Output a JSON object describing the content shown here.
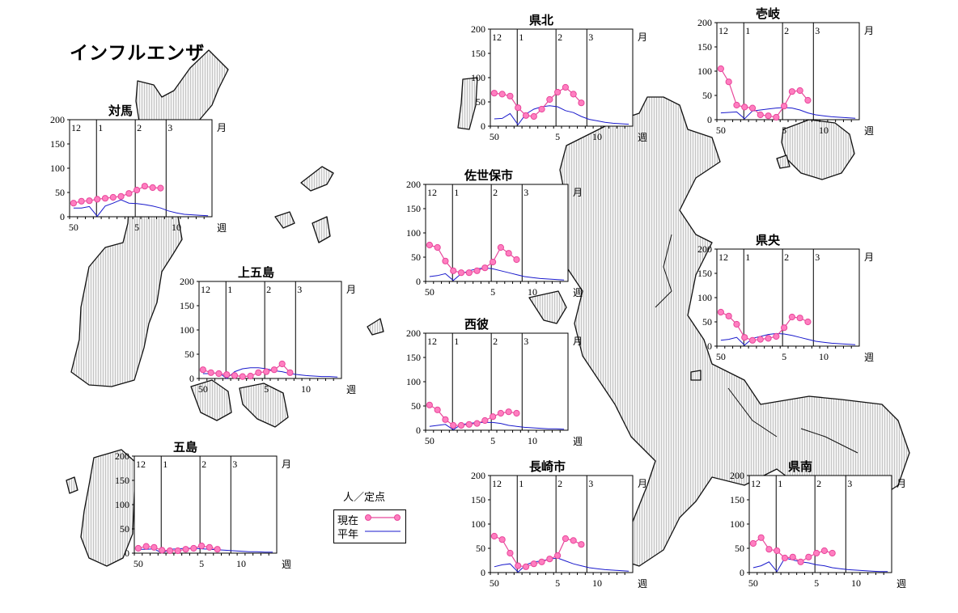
{
  "title": "インフルエンザ",
  "legend": {
    "unit": "人／定点",
    "current": "現在",
    "average": "平年"
  },
  "colors": {
    "current": "#e8479b",
    "current_fill": "#ff7ec0",
    "average": "#1a1acc",
    "land_fill": "#ececec",
    "land_stripe": "#c8c8c8"
  },
  "chart_data": [
    {
      "type": "line",
      "region": "対馬",
      "y_ticks": [
        "200",
        "150",
        "100",
        "50",
        "0"
      ],
      "ylim": [
        0,
        200
      ],
      "x_ticks": [
        "50",
        "5",
        "10"
      ],
      "x_unit": "週",
      "months": [
        "12",
        "1",
        "2",
        "3"
      ],
      "month_unit": "月",
      "series": [
        {
          "name": "現在",
          "values": [
            28,
            32,
            33,
            36,
            38,
            40,
            42,
            48,
            55,
            63,
            60,
            59
          ]
        },
        {
          "name": "平年",
          "values": [
            18,
            18,
            21,
            1,
            22,
            28,
            35,
            28,
            27,
            25,
            22,
            18,
            12,
            8,
            5,
            4,
            3,
            2
          ]
        }
      ]
    },
    {
      "type": "line",
      "region": "上五島",
      "y_ticks": [
        "200",
        "150",
        "100",
        "50",
        "0"
      ],
      "ylim": [
        0,
        200
      ],
      "x_ticks": [
        "50",
        "5",
        "10"
      ],
      "x_unit": "週",
      "months": [
        "12",
        "1",
        "2",
        "3"
      ],
      "month_unit": "月",
      "series": [
        {
          "name": "現在",
          "values": [
            18,
            12,
            10,
            8,
            6,
            4,
            5,
            12,
            14,
            18,
            30,
            12
          ]
        },
        {
          "name": "平年",
          "values": [
            10,
            10,
            12,
            0,
            14,
            20,
            22,
            22,
            20,
            16,
            14,
            10,
            8,
            6,
            5,
            4,
            4,
            3
          ]
        }
      ]
    },
    {
      "type": "line",
      "region": "五島",
      "y_ticks": [
        "200",
        "150",
        "100",
        "50",
        "0"
      ],
      "ylim": [
        0,
        200
      ],
      "x_ticks": [
        "50",
        "5",
        "10"
      ],
      "x_unit": "週",
      "months": [
        "12",
        "1",
        "2",
        "3"
      ],
      "month_unit": "月",
      "series": [
        {
          "name": "現在",
          "values": [
            10,
            14,
            12,
            6,
            5,
            5,
            8,
            10,
            15,
            12,
            8
          ]
        },
        {
          "name": "平年",
          "values": [
            8,
            8,
            9,
            0,
            8,
            9,
            10,
            10,
            9,
            8,
            7,
            6,
            5,
            4,
            3,
            3,
            2,
            2
          ]
        }
      ]
    },
    {
      "type": "line",
      "region": "県北",
      "y_ticks": [
        "200",
        "150",
        "100",
        "50",
        "0"
      ],
      "ylim": [
        0,
        200
      ],
      "x_ticks": [
        "50",
        "5",
        "10"
      ],
      "x_unit": "週",
      "months": [
        "12",
        "1",
        "2",
        "3"
      ],
      "month_unit": "月",
      "series": [
        {
          "name": "現在",
          "values": [
            68,
            66,
            62,
            38,
            22,
            20,
            35,
            55,
            70,
            80,
            66,
            48
          ]
        },
        {
          "name": "平年",
          "values": [
            15,
            16,
            26,
            3,
            25,
            35,
            40,
            42,
            40,
            32,
            28,
            20,
            14,
            11,
            8,
            6,
            5,
            4
          ]
        }
      ]
    },
    {
      "type": "line",
      "region": "壱岐",
      "y_ticks": [
        "200",
        "150",
        "100",
        "50",
        "0"
      ],
      "ylim": [
        0,
        200
      ],
      "x_ticks": [
        "50",
        "5",
        "10"
      ],
      "x_unit": "週",
      "months": [
        "12",
        "1",
        "2",
        "3"
      ],
      "month_unit": "月",
      "series": [
        {
          "name": "現在",
          "values": [
            105,
            78,
            30,
            26,
            24,
            10,
            8,
            5,
            28,
            58,
            60,
            40
          ]
        },
        {
          "name": "平年",
          "values": [
            14,
            15,
            16,
            2,
            18,
            20,
            22,
            24,
            25,
            24,
            20,
            14,
            10,
            8,
            6,
            5,
            4,
            3
          ]
        }
      ]
    },
    {
      "type": "line",
      "region": "佐世保市",
      "y_ticks": [
        "200",
        "150",
        "100",
        "50",
        "0"
      ],
      "ylim": [
        0,
        200
      ],
      "x_ticks": [
        "50",
        "5",
        "10"
      ],
      "x_unit": "週",
      "months": [
        "12",
        "1",
        "2",
        "3"
      ],
      "month_unit": "月",
      "series": [
        {
          "name": "現在",
          "values": [
            75,
            70,
            42,
            22,
            18,
            18,
            22,
            28,
            40,
            70,
            58,
            45
          ]
        },
        {
          "name": "平年",
          "values": [
            10,
            12,
            16,
            2,
            16,
            22,
            26,
            28,
            26,
            22,
            18,
            14,
            10,
            8,
            6,
            5,
            4,
            3
          ]
        }
      ]
    },
    {
      "type": "line",
      "region": "県央",
      "y_ticks": [
        "200",
        "150",
        "100",
        "50",
        "0"
      ],
      "ylim": [
        0,
        200
      ],
      "x_ticks": [
        "50",
        "5",
        "10"
      ],
      "x_unit": "週",
      "months": [
        "12",
        "1",
        "2",
        "3"
      ],
      "month_unit": "月",
      "series": [
        {
          "name": "現在",
          "values": [
            70,
            62,
            45,
            18,
            12,
            14,
            16,
            20,
            38,
            60,
            58,
            50
          ]
        },
        {
          "name": "平年",
          "values": [
            12,
            14,
            18,
            2,
            16,
            20,
            24,
            26,
            25,
            22,
            18,
            14,
            10,
            8,
            6,
            5,
            4,
            3
          ]
        }
      ]
    },
    {
      "type": "line",
      "region": "西彼",
      "y_ticks": [
        "200",
        "150",
        "100",
        "50",
        "0"
      ],
      "ylim": [
        0,
        200
      ],
      "x_ticks": [
        "50",
        "5",
        "10"
      ],
      "x_unit": "週",
      "months": [
        "12",
        "1",
        "2",
        "3"
      ],
      "month_unit": "月",
      "series": [
        {
          "name": "現在",
          "values": [
            52,
            42,
            22,
            10,
            10,
            12,
            14,
            20,
            28,
            35,
            38,
            35
          ]
        },
        {
          "name": "平年",
          "values": [
            8,
            10,
            12,
            1,
            12,
            14,
            16,
            16,
            16,
            14,
            10,
            8,
            6,
            5,
            4,
            3,
            3,
            2
          ]
        }
      ]
    },
    {
      "type": "line",
      "region": "長崎市",
      "y_ticks": [
        "200",
        "150",
        "100",
        "50",
        "0"
      ],
      "ylim": [
        0,
        200
      ],
      "x_ticks": [
        "50",
        "5",
        "10"
      ],
      "x_unit": "週",
      "months": [
        "12",
        "1",
        "2",
        "3"
      ],
      "month_unit": "月",
      "series": [
        {
          "name": "現在",
          "values": [
            75,
            68,
            40,
            14,
            12,
            18,
            22,
            28,
            35,
            70,
            66,
            58
          ]
        },
        {
          "name": "平年",
          "values": [
            12,
            16,
            18,
            1,
            16,
            22,
            24,
            28,
            30,
            24,
            18,
            14,
            10,
            8,
            6,
            5,
            4,
            3
          ]
        }
      ]
    },
    {
      "type": "line",
      "region": "県南",
      "y_ticks": [
        "200",
        "150",
        "100",
        "50",
        "0"
      ],
      "ylim": [
        0,
        200
      ],
      "x_ticks": [
        "50",
        "5",
        "10"
      ],
      "x_unit": "週",
      "months": [
        "12",
        "1",
        "2",
        "3"
      ],
      "month_unit": "月",
      "series": [
        {
          "name": "現在",
          "values": [
            60,
            72,
            48,
            45,
            30,
            32,
            22,
            32,
            40,
            45,
            40
          ]
        },
        {
          "name": "平年",
          "values": [
            10,
            14,
            22,
            2,
            30,
            26,
            22,
            20,
            16,
            14,
            10,
            8,
            6,
            5,
            4,
            3,
            2,
            2
          ]
        }
      ]
    }
  ]
}
